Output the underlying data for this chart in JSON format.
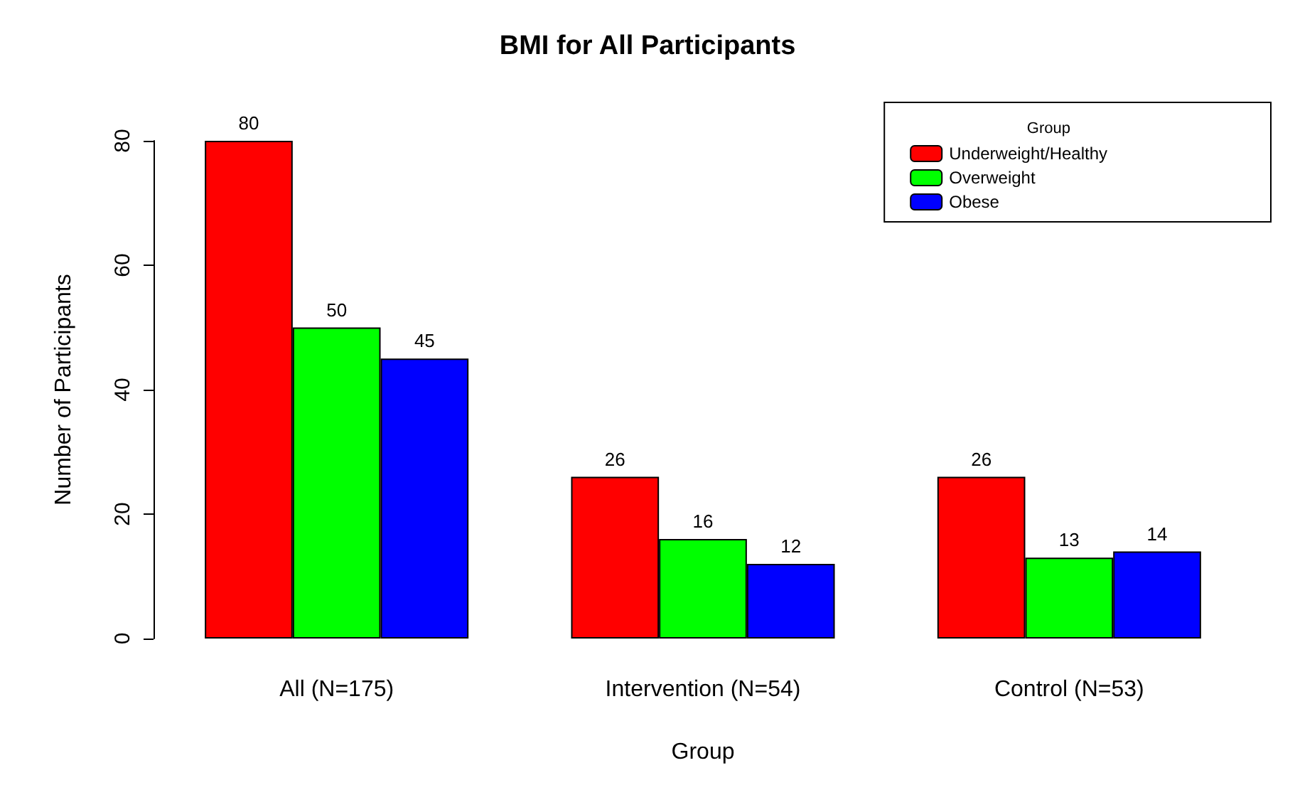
{
  "chart_data": {
    "type": "bar",
    "title": "BMI for All Participants",
    "xlabel": "Group",
    "ylabel": "Number of Participants",
    "legend_title": "Group",
    "categories": [
      "All (N=175)",
      "Intervention (N=54)",
      "Control (N=53)"
    ],
    "series": [
      {
        "name": "Underweight/Healthy",
        "color": "#ff0000",
        "values": [
          80,
          26,
          26
        ]
      },
      {
        "name": "Overweight",
        "color": "#00ff00",
        "values": [
          50,
          16,
          13
        ]
      },
      {
        "name": "Obese",
        "color": "#0000ff",
        "values": [
          45,
          12,
          14
        ]
      }
    ],
    "ylim": [
      0,
      80
    ],
    "yticks": [
      0,
      20,
      40,
      60,
      80
    ],
    "grid": false,
    "legend": "top right",
    "data_labels": true
  }
}
